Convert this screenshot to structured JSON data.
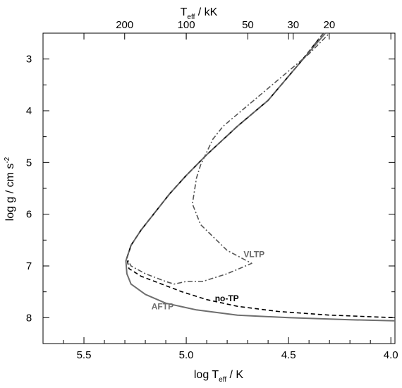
{
  "chart_data": {
    "type": "line",
    "xlabel": {
      "main": "log T",
      "sub": "eff",
      "unit": " / K"
    },
    "ylabel": {
      "main": "log g / cm s",
      "sup": "-2"
    },
    "top_axis": {
      "label_main": "T",
      "label_sub": "eff",
      "label_unit": " / kK",
      "ticks_kK": [
        200,
        100,
        50,
        30,
        20
      ]
    },
    "xlim": [
      5.7,
      3.98
    ],
    "ylim": [
      8.5,
      2.5
    ],
    "x_ticks": [
      5.5,
      5.0,
      4.5,
      4.0
    ],
    "x_tick_labels": [
      "5.5",
      "5.0",
      "4.5",
      "4.0"
    ],
    "y_ticks": [
      3,
      4,
      5,
      6,
      7,
      8
    ],
    "y_tick_labels": [
      "3",
      "4",
      "5",
      "6",
      "7",
      "8"
    ],
    "series": [
      {
        "name": "AFTP",
        "color": "#6e6e6e",
        "dash": "solid",
        "x": [
          4.32,
          4.45,
          4.6,
          4.75,
          4.9,
          5.0,
          5.08,
          5.15,
          5.22,
          5.27,
          5.295,
          5.29,
          5.27,
          5.2,
          5.1,
          4.95,
          4.75,
          4.5,
          4.2,
          3.98
        ],
        "y": [
          2.5,
          3.1,
          3.8,
          4.3,
          4.85,
          5.25,
          5.6,
          5.95,
          6.3,
          6.6,
          6.9,
          7.15,
          7.35,
          7.55,
          7.72,
          7.85,
          7.95,
          8.0,
          8.04,
          8.06
        ]
      },
      {
        "name": "no-TP",
        "color": "#000000",
        "dash": "dashed",
        "x": [
          4.33,
          4.45,
          4.6,
          4.75,
          4.9,
          5.0,
          5.08,
          5.15,
          5.22,
          5.27,
          5.29,
          5.28,
          5.22,
          5.12,
          5.02,
          4.9,
          4.75,
          4.55,
          4.3,
          3.98
        ],
        "y": [
          2.5,
          3.1,
          3.8,
          4.3,
          4.85,
          5.25,
          5.6,
          5.95,
          6.3,
          6.6,
          6.85,
          7.05,
          7.2,
          7.35,
          7.5,
          7.65,
          7.78,
          7.88,
          7.95,
          8.0
        ]
      },
      {
        "name": "VLTP",
        "color": "#555555",
        "dash": "dashdot",
        "x": [
          4.33,
          4.45,
          4.6,
          4.75,
          4.9,
          5.0,
          5.08,
          5.15,
          5.22,
          5.27,
          5.29,
          5.27,
          5.2,
          5.1,
          5.06,
          5.0,
          4.92,
          4.8,
          4.68,
          4.8,
          4.93,
          4.97,
          4.96,
          4.95,
          4.93,
          4.9,
          4.87,
          4.82,
          4.7,
          4.55,
          4.4,
          4.3
        ],
        "y": [
          2.5,
          3.1,
          3.8,
          4.3,
          4.85,
          5.25,
          5.6,
          5.95,
          6.3,
          6.6,
          6.85,
          7.0,
          7.15,
          7.3,
          7.35,
          7.3,
          7.3,
          7.15,
          6.95,
          6.7,
          6.2,
          5.8,
          5.55,
          5.3,
          5.05,
          4.8,
          4.55,
          4.3,
          3.9,
          3.4,
          2.9,
          2.5
        ]
      }
    ],
    "annotations": [
      {
        "text": "VLTP",
        "x": 4.72,
        "y": 6.83,
        "color": "#666666"
      },
      {
        "text": "no-TP",
        "x": 4.86,
        "y": 7.68,
        "color": "#000000"
      },
      {
        "text": "AFTP",
        "x": 5.17,
        "y": 7.84,
        "color": "#6e6e6e"
      }
    ],
    "grid": false,
    "legend": "none"
  }
}
